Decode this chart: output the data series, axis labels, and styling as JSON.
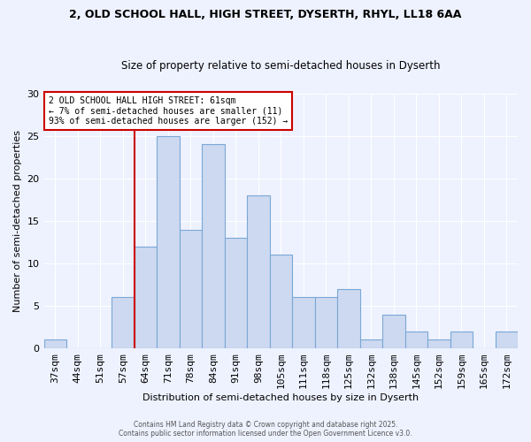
{
  "title_line1": "2, OLD SCHOOL HALL, HIGH STREET, DYSERTH, RHYL, LL18 6AA",
  "title_line2": "Size of property relative to semi-detached houses in Dyserth",
  "xlabel": "Distribution of semi-detached houses by size in Dyserth",
  "ylabel": "Number of semi-detached properties",
  "bar_labels": [
    "37sqm",
    "44sqm",
    "51sqm",
    "57sqm",
    "64sqm",
    "71sqm",
    "78sqm",
    "84sqm",
    "91sqm",
    "98sqm",
    "105sqm",
    "111sqm",
    "118sqm",
    "125sqm",
    "132sqm",
    "138sqm",
    "145sqm",
    "152sqm",
    "159sqm",
    "165sqm",
    "172sqm"
  ],
  "bar_values": [
    1,
    0,
    0,
    6,
    12,
    25,
    14,
    24,
    13,
    18,
    11,
    6,
    6,
    7,
    1,
    4,
    2,
    1,
    2,
    0,
    2
  ],
  "bar_color": "#ccd9f0",
  "bar_edge_color": "#7aa8d6",
  "ylim": [
    0,
    30
  ],
  "yticks": [
    0,
    5,
    10,
    15,
    20,
    25,
    30
  ],
  "vline_x": 3.5,
  "vline_color": "#cc0000",
  "annotation_title": "2 OLD SCHOOL HALL HIGH STREET: 61sqm",
  "annotation_line2": "← 7% of semi-detached houses are smaller (11)",
  "annotation_line3": "93% of semi-detached houses are larger (152) →",
  "annotation_box_color": "#ffffff",
  "annotation_box_edge": "#cc0000",
  "background_color": "#eef2ff",
  "grid_color": "#ffffff",
  "footer_line1": "Contains HM Land Registry data © Crown copyright and database right 2025.",
  "footer_line2": "Contains public sector information licensed under the Open Government Licence v3.0."
}
